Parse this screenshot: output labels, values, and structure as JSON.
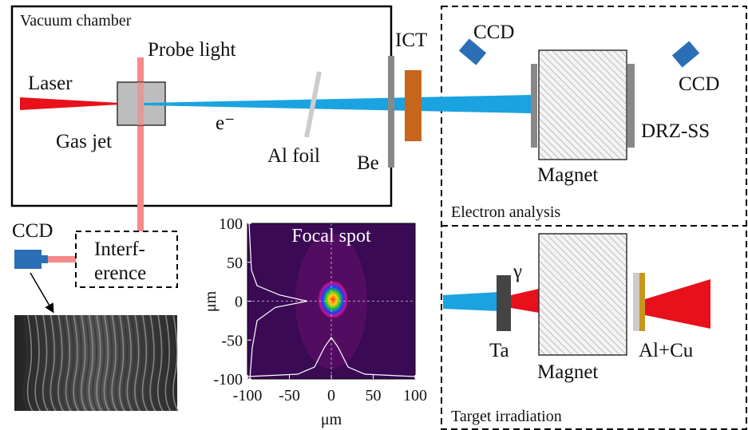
{
  "labels": {
    "vacuum_chamber": "Vacuum chamber",
    "probe_light": "Probe light",
    "laser": "Laser",
    "gas_jet": "Gas jet",
    "electron": "e⁻",
    "al_foil": "Al foil",
    "be": "Be",
    "ict": "ICT",
    "ccd_top": "CCD",
    "ccd_right": "CCD",
    "magnet_top": "Magnet",
    "drz": "DRZ-SS",
    "electron_analysis": "Electron analysis",
    "ccd_left": "CCD",
    "interference_1": "Interf-",
    "interference_2": "erence",
    "gamma": "γ",
    "ta": "Ta",
    "magnet_bottom": "Magnet",
    "alcu": "Al+Cu",
    "target_irradiation": "Target irradiation"
  },
  "focal_spot": {
    "title": "Focal spot",
    "xlabel": "μm",
    "ylabel": "μm",
    "xlim": [
      -100,
      100
    ],
    "ylim": [
      -100,
      100
    ],
    "xticks": [
      -100,
      -50,
      0,
      50,
      100
    ],
    "yticks": [
      -100,
      -50,
      0,
      50,
      100
    ]
  }
}
